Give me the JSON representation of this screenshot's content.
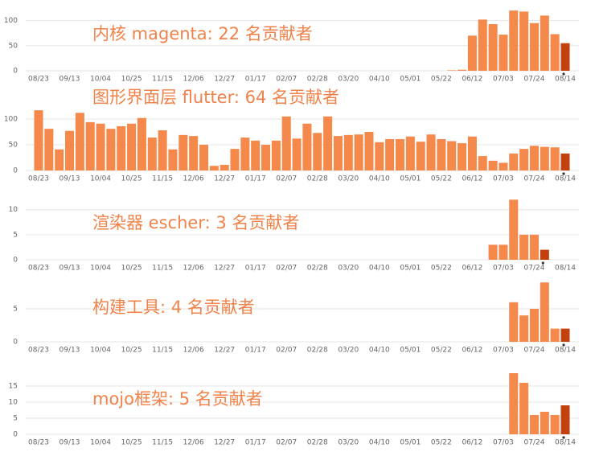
{
  "chart_data": [
    {
      "type": "bar",
      "title": "内核 magenta: 22 名贡献者",
      "categories": [
        "08/23",
        null,
        null,
        "09/13",
        null,
        null,
        "10/04",
        null,
        null,
        "10/25",
        null,
        null,
        "11/15",
        null,
        null,
        "12/06",
        null,
        null,
        "12/27",
        null,
        null,
        "01/17",
        null,
        null,
        "02/07",
        null,
        null,
        "02/28",
        null,
        null,
        "03/20",
        null,
        null,
        "04/10",
        null,
        null,
        "05/01",
        null,
        null,
        "05/22",
        null,
        null,
        "06/12",
        null,
        null,
        "07/03",
        null,
        null,
        "07/24",
        null,
        null,
        "08/14"
      ],
      "values": [
        0,
        0,
        0,
        0,
        0,
        0,
        0,
        0,
        0,
        0,
        0,
        0,
        0,
        0,
        0,
        0,
        0,
        0,
        0,
        0,
        0,
        0,
        0,
        0,
        0,
        0,
        0,
        0,
        0,
        0,
        0,
        0,
        0,
        0,
        0,
        0,
        0,
        0,
        0,
        0,
        1,
        2,
        70,
        102,
        93,
        72,
        120,
        118,
        95,
        110,
        73,
        55
      ],
      "color": "#f4894b",
      "highlight": {
        "index": 51,
        "color": "#c2410f"
      },
      "ylim": [
        0,
        125
      ],
      "yticks": [
        0,
        50,
        100
      ],
      "grid": true
    },
    {
      "type": "bar",
      "title": "图形界面层 flutter: 64 名贡献者",
      "categories": [
        "08/23",
        null,
        null,
        "09/13",
        null,
        null,
        "10/04",
        null,
        null,
        "10/25",
        null,
        null,
        "11/15",
        null,
        null,
        "12/06",
        null,
        null,
        "12/27",
        null,
        null,
        "01/17",
        null,
        null,
        "02/07",
        null,
        null,
        "02/28",
        null,
        null,
        "03/20",
        null,
        null,
        "04/10",
        null,
        null,
        "05/01",
        null,
        null,
        "05/22",
        null,
        null,
        "06/12",
        null,
        null,
        "07/03",
        null,
        null,
        "07/24",
        null,
        null,
        "08/14"
      ],
      "values": [
        117,
        81,
        41,
        77,
        112,
        94,
        91,
        81,
        86,
        91,
        102,
        64,
        78,
        41,
        69,
        67,
        50,
        9,
        11,
        42,
        64,
        58,
        50,
        58,
        105,
        62,
        91,
        73,
        105,
        67,
        69,
        70,
        75,
        55,
        61,
        61,
        66,
        56,
        70,
        61,
        57,
        53,
        66,
        28,
        19,
        15,
        33,
        42,
        48,
        46,
        45,
        33
      ],
      "color": "#f4894b",
      "highlight": {
        "index": 51,
        "color": "#c2410f"
      },
      "ylim": [
        0,
        125
      ],
      "yticks": [
        0,
        50,
        100
      ],
      "grid": true
    },
    {
      "type": "bar",
      "title": "渲染器 escher: 3 名贡献者",
      "categories": [
        "08/23",
        null,
        null,
        "09/13",
        null,
        null,
        "10/04",
        null,
        null,
        "10/25",
        null,
        null,
        "11/15",
        null,
        null,
        "12/06",
        null,
        null,
        "12/27",
        null,
        null,
        "01/17",
        null,
        null,
        "02/07",
        null,
        null,
        "02/28",
        null,
        null,
        "03/20",
        null,
        null,
        "04/10",
        null,
        null,
        "05/01",
        null,
        null,
        "05/22",
        null,
        null,
        "06/12",
        null,
        null,
        "07/03",
        null,
        null,
        "07/24",
        null,
        null,
        "08/14"
      ],
      "values": [
        0,
        0,
        0,
        0,
        0,
        0,
        0,
        0,
        0,
        0,
        0,
        0,
        0,
        0,
        0,
        0,
        0,
        0,
        0,
        0,
        0,
        0,
        0,
        0,
        0,
        0,
        0,
        0,
        0,
        0,
        0,
        0,
        0,
        0,
        0,
        0,
        0,
        0,
        0,
        0,
        0,
        0,
        0,
        0,
        3,
        3,
        12,
        5,
        5,
        2,
        0,
        0
      ],
      "color": "#f4894b",
      "highlight": {
        "index": 49,
        "color": "#c2410f"
      },
      "ylim": [
        0,
        13
      ],
      "yticks": [
        0,
        5,
        10
      ],
      "grid": true
    },
    {
      "type": "bar",
      "title": "构建工具: 4 名贡献者",
      "categories": [
        "08/23",
        null,
        null,
        "09/13",
        null,
        null,
        "10/04",
        null,
        null,
        "10/25",
        null,
        null,
        "11/15",
        null,
        null,
        "12/06",
        null,
        null,
        "12/27",
        null,
        null,
        "01/17",
        null,
        null,
        "02/07",
        null,
        null,
        "02/28",
        null,
        null,
        "03/20",
        null,
        null,
        "04/10",
        null,
        null,
        "05/01",
        null,
        null,
        "05/22",
        null,
        null,
        "06/12",
        null,
        null,
        "07/03",
        null,
        null,
        "07/24",
        null,
        null,
        "08/14"
      ],
      "values": [
        0,
        0,
        0,
        0,
        0,
        0,
        0,
        0,
        0,
        0,
        0,
        0,
        0,
        0,
        0,
        0,
        0,
        0,
        0,
        0,
        0,
        0,
        0,
        0,
        0,
        0,
        0,
        0,
        0,
        0,
        0,
        0,
        0,
        0,
        0,
        0,
        0,
        0,
        0,
        0,
        0,
        0,
        0,
        0,
        0,
        0,
        6,
        4,
        5,
        9,
        2,
        2
      ],
      "color": "#f4894b",
      "highlight": {
        "index": 51,
        "color": "#c2410f"
      },
      "ylim": [
        0,
        10
      ],
      "yticks": [
        0,
        5
      ],
      "grid": true
    },
    {
      "type": "bar",
      "title": "mojo框架: 5 名贡献者",
      "categories": [
        "08/23",
        null,
        null,
        "09/13",
        null,
        null,
        "10/04",
        null,
        null,
        "10/25",
        null,
        null,
        "11/15",
        null,
        null,
        "12/06",
        null,
        null,
        "12/27",
        null,
        null,
        "01/17",
        null,
        null,
        "02/07",
        null,
        null,
        "02/28",
        null,
        null,
        "03/20",
        null,
        null,
        "04/10",
        null,
        null,
        "05/01",
        null,
        null,
        "05/22",
        null,
        null,
        "06/12",
        null,
        null,
        "07/03",
        null,
        null,
        "07/24",
        null,
        null,
        "08/14"
      ],
      "values": [
        0,
        0,
        0,
        0,
        0,
        0,
        0,
        0,
        0,
        0,
        0,
        0,
        0,
        0,
        0,
        0,
        0,
        0,
        0,
        0,
        0,
        0,
        0,
        0,
        0,
        0,
        0,
        0,
        0,
        0,
        0,
        0,
        0,
        0,
        0,
        0,
        0,
        0,
        0,
        0,
        0,
        0,
        0,
        0,
        0,
        0,
        19,
        16,
        6,
        7,
        6,
        9
      ],
      "color": "#f4894b",
      "highlight": {
        "index": 51,
        "color": "#c2410f"
      },
      "ylim": [
        0,
        20
      ],
      "yticks": [
        0,
        5,
        10,
        15
      ],
      "grid": true
    }
  ]
}
